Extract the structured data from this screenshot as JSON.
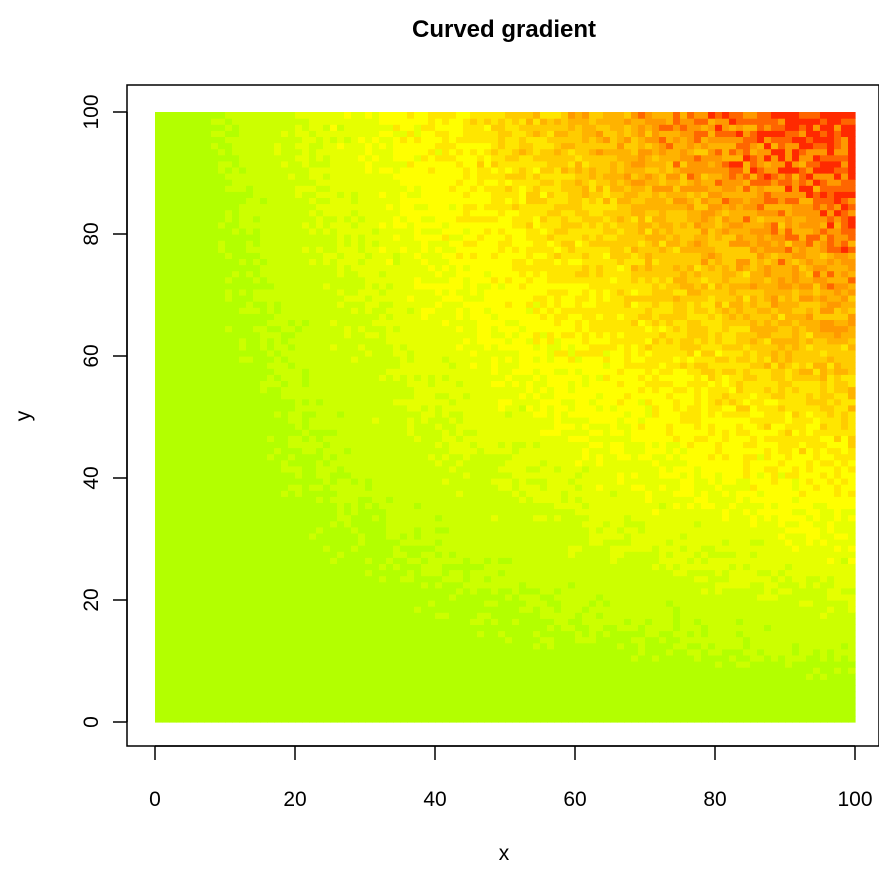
{
  "chart_data": {
    "type": "heatmap",
    "title": "Curved gradient",
    "xlabel": "x",
    "ylabel": "y",
    "xlim": [
      0,
      100
    ],
    "ylim": [
      0,
      100
    ],
    "x_ticks": [
      "0",
      "20",
      "40",
      "60",
      "80",
      "100"
    ],
    "y_ticks": [
      "0",
      "20",
      "40",
      "60",
      "80",
      "100"
    ],
    "grid": "off",
    "legend": "none",
    "grid_cells": [
      100,
      100
    ],
    "value_function": "x * y (noisy)",
    "value_range": [
      0,
      10000
    ],
    "colors": {
      "low": "#99ff00",
      "mid": "#ffff00",
      "high": "#ff0000"
    },
    "color_bands": [
      {
        "range": [
          0,
          1000
        ],
        "color": "#b3ff00"
      },
      {
        "range": [
          1000,
          2000
        ],
        "color": "#ccff00"
      },
      {
        "range": [
          2000,
          3000
        ],
        "color": "#e6ff00"
      },
      {
        "range": [
          3000,
          4000
        ],
        "color": "#ffff00"
      },
      {
        "range": [
          4000,
          5000
        ],
        "color": "#ffe600"
      },
      {
        "range": [
          5000,
          6000
        ],
        "color": "#ffcc00"
      },
      {
        "range": [
          6000,
          7000
        ],
        "color": "#ffb300"
      },
      {
        "range": [
          7000,
          8000
        ],
        "color": "#ff9900"
      },
      {
        "range": [
          8000,
          9000
        ],
        "color": "#ff6600"
      },
      {
        "range": [
          9000,
          10000
        ],
        "color": "#ff2a00"
      }
    ]
  }
}
